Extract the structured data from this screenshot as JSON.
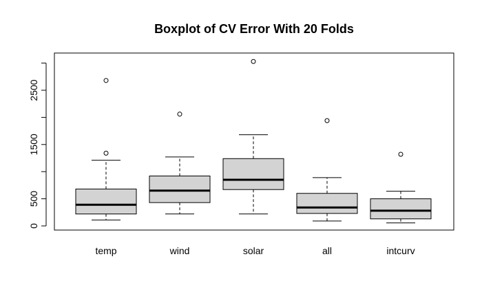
{
  "chart_data": {
    "type": "boxplot",
    "title": "Boxplot of CV Error With 20 Folds",
    "xlabel": "",
    "ylabel": "",
    "categories": [
      "temp",
      "wind",
      "solar",
      "all",
      "intcurv"
    ],
    "yticks": [
      0,
      500,
      1500,
      2500
    ],
    "ylim": [
      -50,
      3200
    ],
    "box_fill": "#d3d3d3",
    "grid": false,
    "legend": "none",
    "boxes": [
      {
        "label": "temp",
        "whisker_low": 110,
        "q1": 220,
        "median": 390,
        "q3": 680,
        "whisker_high": 1210,
        "outliers": [
          1340,
          2680
        ]
      },
      {
        "label": "wind",
        "whisker_low": 220,
        "q1": 430,
        "median": 650,
        "q3": 920,
        "whisker_high": 1270,
        "outliers": [
          2060
        ]
      },
      {
        "label": "solar",
        "whisker_low": 220,
        "q1": 670,
        "median": 850,
        "q3": 1240,
        "whisker_high": 1680,
        "outliers": [
          3030
        ]
      },
      {
        "label": "all",
        "whisker_low": 90,
        "q1": 230,
        "median": 340,
        "q3": 600,
        "whisker_high": 890,
        "outliers": [
          1940
        ]
      },
      {
        "label": "intcurv",
        "whisker_low": 55,
        "q1": 130,
        "median": 280,
        "q3": 500,
        "whisker_high": 640,
        "outliers": [
          1320
        ]
      }
    ]
  }
}
